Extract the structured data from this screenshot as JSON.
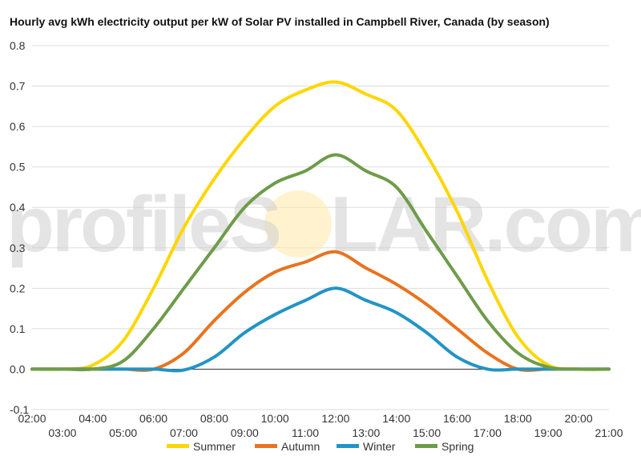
{
  "chart_data": {
    "type": "line",
    "title": "Hourly avg kWh electricity output per kW of Solar PV installed in Campbell River, Canada (by season)",
    "xlabel": "",
    "ylabel": "",
    "ylim": [
      -0.1,
      0.8
    ],
    "yticks": [
      "-0.1",
      "0.0",
      "0.1",
      "0.2",
      "0.3",
      "0.4",
      "0.5",
      "0.6",
      "0.7",
      "0.8"
    ],
    "xlim": [
      2,
      21
    ],
    "xticks_even": [
      "02:00",
      "04:00",
      "06:00",
      "08:00",
      "10:00",
      "12:00",
      "14:00",
      "16:00",
      "18:00",
      "20:00"
    ],
    "xticks_odd": [
      "03:00",
      "05:00",
      "07:00",
      "09:00",
      "11:00",
      "13:00",
      "15:00",
      "17:00",
      "19:00",
      "21:00"
    ],
    "grid": true,
    "legend_position": "bottom",
    "x": [
      2,
      3,
      4,
      5,
      6,
      7,
      8,
      9,
      10,
      11,
      12,
      13,
      14,
      15,
      16,
      17,
      18,
      19,
      20,
      21
    ],
    "series": [
      {
        "name": "Summer",
        "color": "#FFD600",
        "values": [
          0,
          0,
          0.01,
          0.07,
          0.2,
          0.35,
          0.47,
          0.57,
          0.65,
          0.69,
          0.71,
          0.68,
          0.64,
          0.53,
          0.39,
          0.22,
          0.08,
          0.01,
          0,
          0
        ]
      },
      {
        "name": "Autumn",
        "color": "#E8731E",
        "values": [
          0,
          0,
          0,
          0,
          0,
          0.04,
          0.12,
          0.19,
          0.24,
          0.265,
          0.29,
          0.25,
          0.21,
          0.16,
          0.1,
          0.04,
          0,
          0,
          0,
          0
        ]
      },
      {
        "name": "Winter",
        "color": "#2294C5",
        "values": [
          0,
          0,
          0,
          0,
          0,
          -0.002,
          0.03,
          0.09,
          0.135,
          0.17,
          0.2,
          0.17,
          0.14,
          0.09,
          0.03,
          0,
          0,
          0,
          0,
          0
        ]
      },
      {
        "name": "Spring",
        "color": "#6E9C4A",
        "values": [
          0,
          0,
          0,
          0.02,
          0.1,
          0.2,
          0.3,
          0.4,
          0.46,
          0.49,
          0.53,
          0.49,
          0.45,
          0.34,
          0.23,
          0.12,
          0.04,
          0.005,
          0,
          0
        ]
      }
    ]
  },
  "watermark": {
    "left": "profileS",
    "right": "LAR.com",
    "sun_color": "#FFE9A8"
  }
}
